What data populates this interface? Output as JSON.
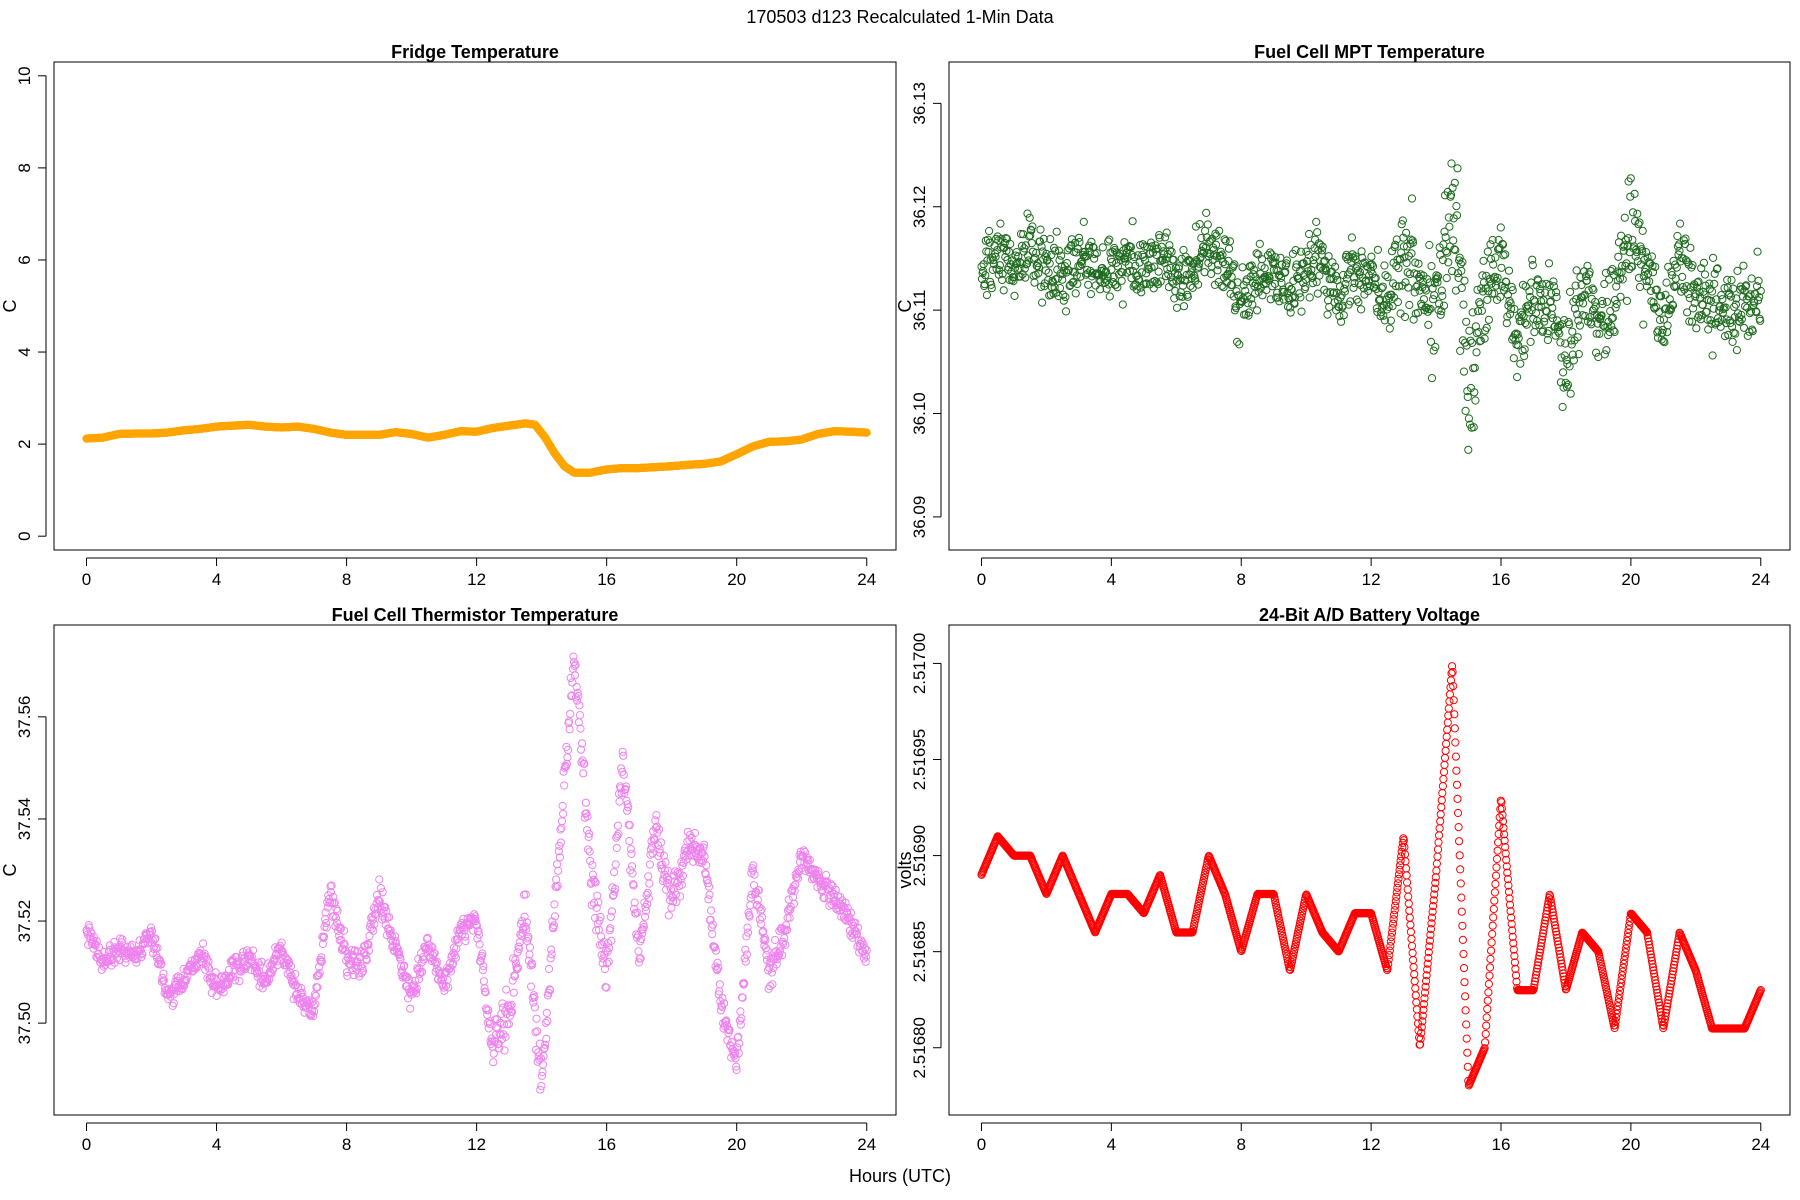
{
  "page": {
    "suptitle": "170503   d123   Recalculated 1-Min Data",
    "xlabel": "Hours (UTC)"
  },
  "chart_data": [
    {
      "type": "scatter",
      "title": "Fridge Temperature",
      "ylabel": "C",
      "xlabel": "",
      "color": "#FFA500",
      "xlim": [
        -1,
        24.9
      ],
      "ylim": [
        -0.3,
        10.3
      ],
      "xticks": [
        0,
        4,
        8,
        12,
        16,
        20,
        24
      ],
      "yticks": [
        0,
        2,
        4,
        6,
        8,
        10
      ],
      "ytick_labels": [
        "0",
        "2",
        "4",
        "6",
        "8",
        "10"
      ],
      "series": [
        {
          "name": "Fridge Temperature",
          "x": [
            0.0,
            0.5,
            1.0,
            1.5,
            2.0,
            2.5,
            3.0,
            3.5,
            4.0,
            4.5,
            5.0,
            5.5,
            6.0,
            6.5,
            7.0,
            7.5,
            8.0,
            8.5,
            9.0,
            9.5,
            10.0,
            10.5,
            11.0,
            11.5,
            12.0,
            12.5,
            13.0,
            13.5,
            13.8,
            14.1,
            14.4,
            14.7,
            15.0,
            15.5,
            16.0,
            16.5,
            17.0,
            17.5,
            18.0,
            18.5,
            19.0,
            19.5,
            20.0,
            20.5,
            21.0,
            21.5,
            22.0,
            22.5,
            23.0,
            23.5,
            24.0
          ],
          "y": [
            2.12,
            2.14,
            2.22,
            2.23,
            2.23,
            2.25,
            2.3,
            2.33,
            2.38,
            2.4,
            2.42,
            2.38,
            2.36,
            2.38,
            2.33,
            2.25,
            2.2,
            2.2,
            2.2,
            2.26,
            2.22,
            2.14,
            2.2,
            2.28,
            2.27,
            2.35,
            2.4,
            2.45,
            2.42,
            2.15,
            1.8,
            1.52,
            1.38,
            1.38,
            1.45,
            1.48,
            1.48,
            1.5,
            1.52,
            1.55,
            1.57,
            1.62,
            1.78,
            1.95,
            2.05,
            2.06,
            2.1,
            2.22,
            2.28,
            2.27,
            2.25
          ]
        }
      ]
    },
    {
      "type": "scatter",
      "title": "Fuel Cell MPT Temperature",
      "ylabel": "C",
      "xlabel": "",
      "color": "#1E6B1E",
      "xlim": [
        -1,
        24.9
      ],
      "ylim": [
        36.0868,
        36.134
      ],
      "xticks": [
        0,
        4,
        8,
        12,
        16,
        20,
        24
      ],
      "yticks": [
        36.09,
        36.1,
        36.11,
        36.12,
        36.13
      ],
      "ytick_labels": [
        "36.09",
        "36.10",
        "36.11",
        "36.12",
        "36.13"
      ],
      "series": [
        {
          "name": "Fuel Cell MPT Temperature",
          "x": [
            0.0,
            0.5,
            1.0,
            1.5,
            2.0,
            2.5,
            3.0,
            3.5,
            4.0,
            4.5,
            5.0,
            5.5,
            6.0,
            6.5,
            7.0,
            7.5,
            8.0,
            8.5,
            9.0,
            9.5,
            10.0,
            10.5,
            11.0,
            11.5,
            12.0,
            12.5,
            13.0,
            13.5,
            14.0,
            14.5,
            15.0,
            15.5,
            16.0,
            16.5,
            17.0,
            17.5,
            18.0,
            18.5,
            19.0,
            19.5,
            20.0,
            20.5,
            21.0,
            21.5,
            22.0,
            22.5,
            23.0,
            23.5,
            24.0
          ],
          "y": [
            36.113,
            36.115,
            36.114,
            36.116,
            36.114,
            36.113,
            36.115,
            36.114,
            36.114,
            36.115,
            36.114,
            36.115,
            36.113,
            36.114,
            36.116,
            36.115,
            36.11,
            36.113,
            36.114,
            36.111,
            36.114,
            36.115,
            36.111,
            36.114,
            36.113,
            36.111,
            36.117,
            36.112,
            36.11,
            36.122,
            36.103,
            36.111,
            36.116,
            36.107,
            36.111,
            36.111,
            36.105,
            36.112,
            36.109,
            36.112,
            36.118,
            36.114,
            36.108,
            36.115,
            36.111,
            36.111,
            36.109,
            36.111,
            36.112
          ],
          "spread": [
            0.004,
            0.004,
            0.004,
            0.004,
            0.004,
            0.004,
            0.004,
            0.004,
            0.004,
            0.004,
            0.004,
            0.004,
            0.004,
            0.004,
            0.004,
            0.004,
            0.005,
            0.004,
            0.004,
            0.004,
            0.004,
            0.004,
            0.004,
            0.004,
            0.004,
            0.005,
            0.007,
            0.007,
            0.007,
            0.008,
            0.01,
            0.006,
            0.006,
            0.005,
            0.005,
            0.005,
            0.006,
            0.005,
            0.005,
            0.005,
            0.006,
            0.006,
            0.005,
            0.005,
            0.005,
            0.005,
            0.005,
            0.005,
            0.004
          ]
        }
      ]
    },
    {
      "type": "scatter",
      "title": "Fuel Cell Thermistor Temperature",
      "ylabel": "C",
      "xlabel": "",
      "color": "#EE82EE",
      "xlim": [
        -1,
        24.9
      ],
      "ylim": [
        37.482,
        37.578
      ],
      "xticks": [
        0,
        4,
        8,
        12,
        16,
        20,
        24
      ],
      "yticks": [
        37.5,
        37.52,
        37.54,
        37.56
      ],
      "ytick_labels": [
        "37.50",
        "37.52",
        "37.54",
        "37.56"
      ],
      "series": [
        {
          "name": "Fuel Cell Thermistor Temperature",
          "x": [
            0.0,
            0.5,
            1.0,
            1.5,
            2.0,
            2.5,
            3.0,
            3.5,
            4.0,
            4.5,
            5.0,
            5.5,
            6.0,
            6.5,
            7.0,
            7.5,
            8.0,
            8.5,
            9.0,
            9.5,
            10.0,
            10.5,
            11.0,
            11.5,
            12.0,
            12.5,
            13.0,
            13.5,
            14.0,
            14.5,
            15.0,
            15.5,
            16.0,
            16.5,
            17.0,
            17.5,
            18.0,
            18.5,
            19.0,
            19.5,
            20.0,
            20.5,
            21.0,
            21.5,
            22.0,
            22.5,
            23.0,
            23.5,
            24.0
          ],
          "y": [
            37.518,
            37.512,
            37.515,
            37.513,
            37.518,
            37.505,
            37.508,
            37.514,
            37.506,
            37.51,
            37.513,
            37.508,
            37.515,
            37.505,
            37.503,
            37.526,
            37.512,
            37.511,
            37.525,
            37.515,
            37.505,
            37.516,
            37.507,
            37.518,
            37.52,
            37.495,
            37.502,
            37.523,
            37.488,
            37.53,
            37.572,
            37.53,
            37.508,
            37.552,
            37.513,
            37.54,
            37.523,
            37.535,
            37.533,
            37.505,
            37.492,
            37.53,
            37.51,
            37.518,
            37.533,
            37.528,
            37.525,
            37.52,
            37.513
          ],
          "spread": [
            0.002,
            0.003,
            0.003,
            0.002,
            0.003,
            0.003,
            0.003,
            0.003,
            0.003,
            0.003,
            0.003,
            0.003,
            0.003,
            0.003,
            0.003,
            0.004,
            0.004,
            0.004,
            0.004,
            0.003,
            0.003,
            0.003,
            0.003,
            0.003,
            0.003,
            0.005,
            0.006,
            0.006,
            0.005,
            0.006,
            0.005,
            0.006,
            0.006,
            0.005,
            0.005,
            0.005,
            0.005,
            0.005,
            0.004,
            0.005,
            0.004,
            0.004,
            0.004,
            0.004,
            0.003,
            0.003,
            0.003,
            0.003,
            0.003
          ]
        }
      ]
    },
    {
      "type": "scatter",
      "title": "24-Bit A/D Battery Voltage",
      "ylabel": "volts",
      "xlabel": "",
      "color": "#FF0000",
      "xlim": [
        -1,
        24.9
      ],
      "ylim": [
        2.516765,
        2.51702
      ],
      "xticks": [
        0,
        4,
        8,
        12,
        16,
        20,
        24
      ],
      "yticks": [
        2.5168,
        2.51685,
        2.5169,
        2.51695,
        2.517
      ],
      "ytick_labels": [
        "2.51680",
        "2.51685",
        "2.51690",
        "2.51695",
        "2.51700"
      ],
      "series": [
        {
          "name": "24-Bit A/D Battery Voltage",
          "x": [
            0.0,
            0.5,
            1.0,
            1.5,
            2.0,
            2.5,
            3.0,
            3.5,
            4.0,
            4.5,
            5.0,
            5.5,
            6.0,
            6.5,
            7.0,
            7.5,
            8.0,
            8.5,
            9.0,
            9.5,
            10.0,
            10.5,
            11.0,
            11.5,
            12.0,
            12.5,
            13.0,
            13.5,
            14.0,
            14.5,
            15.0,
            15.5,
            16.0,
            16.5,
            17.0,
            17.5,
            18.0,
            18.5,
            19.0,
            19.5,
            20.0,
            20.5,
            21.0,
            21.5,
            22.0,
            22.5,
            23.0,
            23.5,
            24.0
          ],
          "y": [
            2.51689,
            2.51691,
            2.5169,
            2.5169,
            2.51688,
            2.5169,
            2.51688,
            2.51686,
            2.51688,
            2.51688,
            2.51687,
            2.51689,
            2.51686,
            2.51686,
            2.5169,
            2.51688,
            2.51685,
            2.51688,
            2.51688,
            2.51684,
            2.51688,
            2.51686,
            2.51685,
            2.51687,
            2.51687,
            2.51684,
            2.51691,
            2.5168,
            2.51689,
            2.517,
            2.51678,
            2.5168,
            2.51693,
            2.51683,
            2.51683,
            2.51688,
            2.51683,
            2.51686,
            2.51685,
            2.51681,
            2.51687,
            2.51686,
            2.51681,
            2.51686,
            2.51684,
            2.51681,
            2.51681,
            2.51681,
            2.51683
          ]
        }
      ]
    }
  ]
}
